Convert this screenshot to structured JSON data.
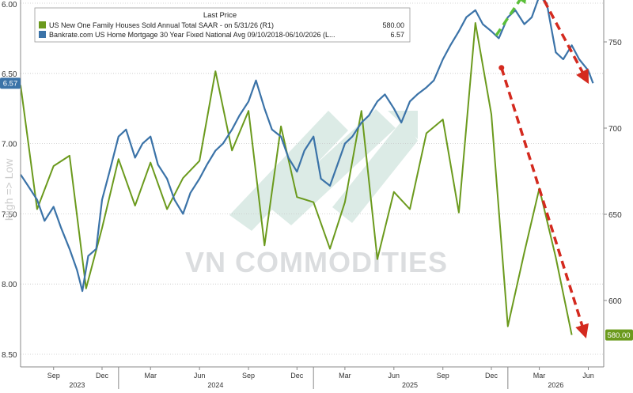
{
  "chart_data": {
    "type": "line",
    "legend": {
      "title": "Last Price",
      "placement": "top-left",
      "entries": [
        {
          "series": "homes",
          "label": "US New One Family Houses Sold Annual Total SAAR - on 5/31/26 (R1)",
          "value": "580.00"
        },
        {
          "series": "mortgage",
          "label": "Bankrate.com US Home Mortgage 30 Year Fixed National Avg 09/10/2018-06/10/2026 (L...",
          "value": "6.57"
        }
      ]
    },
    "left_axis": {
      "label": "High => Low",
      "inverted": true,
      "range": [
        6.0,
        8.5
      ],
      "ticks": [
        "6.00",
        "6.50",
        "7.00",
        "7.50",
        "8.00",
        "8.50"
      ],
      "last_value_tag": "6.57"
    },
    "right_axis": {
      "range": [
        560,
        775
      ],
      "ticks": [
        "600",
        "650",
        "700",
        "750"
      ],
      "last_value_tag": "580.00"
    },
    "x_axis": {
      "range": [
        "2023-07-01",
        "2026-06-30"
      ],
      "month_ticks": [
        {
          "label": "Sep",
          "date": "2023-09-01"
        },
        {
          "label": "Dec",
          "date": "2023-12-01"
        },
        {
          "label": "Mar",
          "date": "2024-03-01"
        },
        {
          "label": "Jun",
          "date": "2024-06-01"
        },
        {
          "label": "Sep",
          "date": "2024-09-01"
        },
        {
          "label": "Dec",
          "date": "2024-12-01"
        },
        {
          "label": "Mar",
          "date": "2025-03-01"
        },
        {
          "label": "Jun",
          "date": "2025-06-01"
        },
        {
          "label": "Sep",
          "date": "2025-09-01"
        },
        {
          "label": "Dec",
          "date": "2025-12-01"
        },
        {
          "label": "Mar",
          "date": "2026-03-01"
        },
        {
          "label": "Jun",
          "date": "2026-06-01"
        }
      ],
      "year_labels": [
        {
          "label": "2023",
          "date": "2023-10-15"
        },
        {
          "label": "2024",
          "date": "2024-07-01"
        },
        {
          "label": "2025",
          "date": "2025-07-01"
        },
        {
          "label": "2026",
          "date": "2026-04-01"
        }
      ],
      "year_dividers": [
        "2024-01-01",
        "2025-01-01",
        "2026-01-01"
      ]
    },
    "grid": "horizontal dotted",
    "watermark": "VN COMMODITIES",
    "colors": {
      "homes": "#6b9a1d",
      "mortgage": "#3b73a8",
      "axis_text": "#333333",
      "annotation_red": "#d42a1f",
      "annotation_green": "#5cbf3a"
    },
    "series": [
      {
        "id": "homes",
        "axis": "right",
        "x": [
          "2023-07-01",
          "2023-08-01",
          "2023-09-01",
          "2023-10-01",
          "2023-11-01",
          "2023-12-01",
          "2024-01-01",
          "2024-02-01",
          "2024-03-01",
          "2024-04-01",
          "2024-05-01",
          "2024-06-01",
          "2024-07-01",
          "2024-08-01",
          "2024-09-01",
          "2024-10-01",
          "2024-11-01",
          "2024-12-01",
          "2025-01-01",
          "2025-02-01",
          "2025-03-01",
          "2025-04-01",
          "2025-05-01",
          "2025-06-01",
          "2025-07-01",
          "2025-08-01",
          "2025-09-01",
          "2025-10-01",
          "2025-11-01",
          "2025-12-01",
          "2026-01-01",
          "2026-02-01",
          "2026-03-01",
          "2026-04-01",
          "2026-05-01"
        ],
        "values": [
          725,
          653,
          678,
          684,
          607,
          642,
          682,
          655,
          680,
          653,
          671,
          681,
          733,
          687,
          710,
          632,
          701,
          660,
          657,
          630,
          657,
          710,
          624,
          663,
          653,
          697,
          705,
          651,
          761,
          708,
          585,
          628,
          665,
          625,
          580
        ]
      },
      {
        "id": "mortgage",
        "axis": "left",
        "x": [
          "2023-07-01",
          "2023-07-15",
          "2023-08-01",
          "2023-08-15",
          "2023-09-01",
          "2023-09-15",
          "2023-10-01",
          "2023-10-15",
          "2023-10-25",
          "2023-11-05",
          "2023-11-20",
          "2023-12-01",
          "2023-12-15",
          "2024-01-01",
          "2024-01-15",
          "2024-02-01",
          "2024-02-15",
          "2024-03-01",
          "2024-03-15",
          "2024-04-01",
          "2024-04-15",
          "2024-05-01",
          "2024-05-15",
          "2024-06-01",
          "2024-06-15",
          "2024-07-01",
          "2024-07-15",
          "2024-08-01",
          "2024-08-15",
          "2024-09-01",
          "2024-09-15",
          "2024-10-01",
          "2024-10-15",
          "2024-11-01",
          "2024-11-15",
          "2024-12-01",
          "2024-12-15",
          "2025-01-01",
          "2025-01-15",
          "2025-02-01",
          "2025-02-15",
          "2025-03-01",
          "2025-03-15",
          "2025-04-01",
          "2025-04-15",
          "2025-05-01",
          "2025-05-15",
          "2025-06-01",
          "2025-06-15",
          "2025-07-01",
          "2025-07-15",
          "2025-08-01",
          "2025-08-15",
          "2025-09-01",
          "2025-09-15",
          "2025-10-01",
          "2025-10-15",
          "2025-11-01",
          "2025-11-15",
          "2025-12-01",
          "2025-12-15",
          "2026-01-01",
          "2026-01-15",
          "2026-02-01",
          "2026-02-15",
          "2026-03-01",
          "2026-03-15",
          "2026-04-01",
          "2026-04-15",
          "2026-05-01",
          "2026-05-15",
          "2026-06-01",
          "2026-06-10"
        ],
        "values": [
          7.22,
          7.3,
          7.4,
          7.55,
          7.45,
          7.6,
          7.75,
          7.9,
          8.05,
          7.8,
          7.75,
          7.4,
          7.2,
          6.95,
          6.9,
          7.1,
          7.0,
          6.95,
          7.15,
          7.25,
          7.4,
          7.5,
          7.35,
          7.25,
          7.15,
          7.05,
          7.0,
          6.9,
          6.8,
          6.7,
          6.55,
          6.75,
          6.9,
          6.95,
          7.1,
          7.2,
          7.05,
          6.95,
          7.25,
          7.3,
          7.15,
          7.0,
          6.95,
          6.85,
          6.8,
          6.7,
          6.65,
          6.75,
          6.85,
          6.7,
          6.65,
          6.6,
          6.55,
          6.4,
          6.3,
          6.2,
          6.1,
          6.05,
          6.15,
          6.2,
          6.25,
          6.1,
          6.05,
          6.15,
          6.1,
          5.95,
          6.0,
          6.35,
          6.4,
          6.3,
          6.4,
          6.48,
          6.57
        ]
      }
    ],
    "annotations": [
      {
        "type": "dashed-arrow",
        "color": "red",
        "from": {
          "date": "2025-12-20",
          "value": 6.46
        },
        "to": {
          "date": "2026-05-25",
          "value": 8.35
        }
      },
      {
        "type": "dashed-arrow",
        "color": "red",
        "from": {
          "date": "2026-03-10",
          "value": 5.98
        },
        "to": {
          "date": "2026-05-28",
          "value": 6.54
        }
      },
      {
        "type": "dashed-arrow",
        "color": "green",
        "from": {
          "date": "2025-12-10",
          "value": 6.23
        },
        "to": {
          "date": "2026-02-01",
          "value": 5.93
        }
      }
    ]
  }
}
